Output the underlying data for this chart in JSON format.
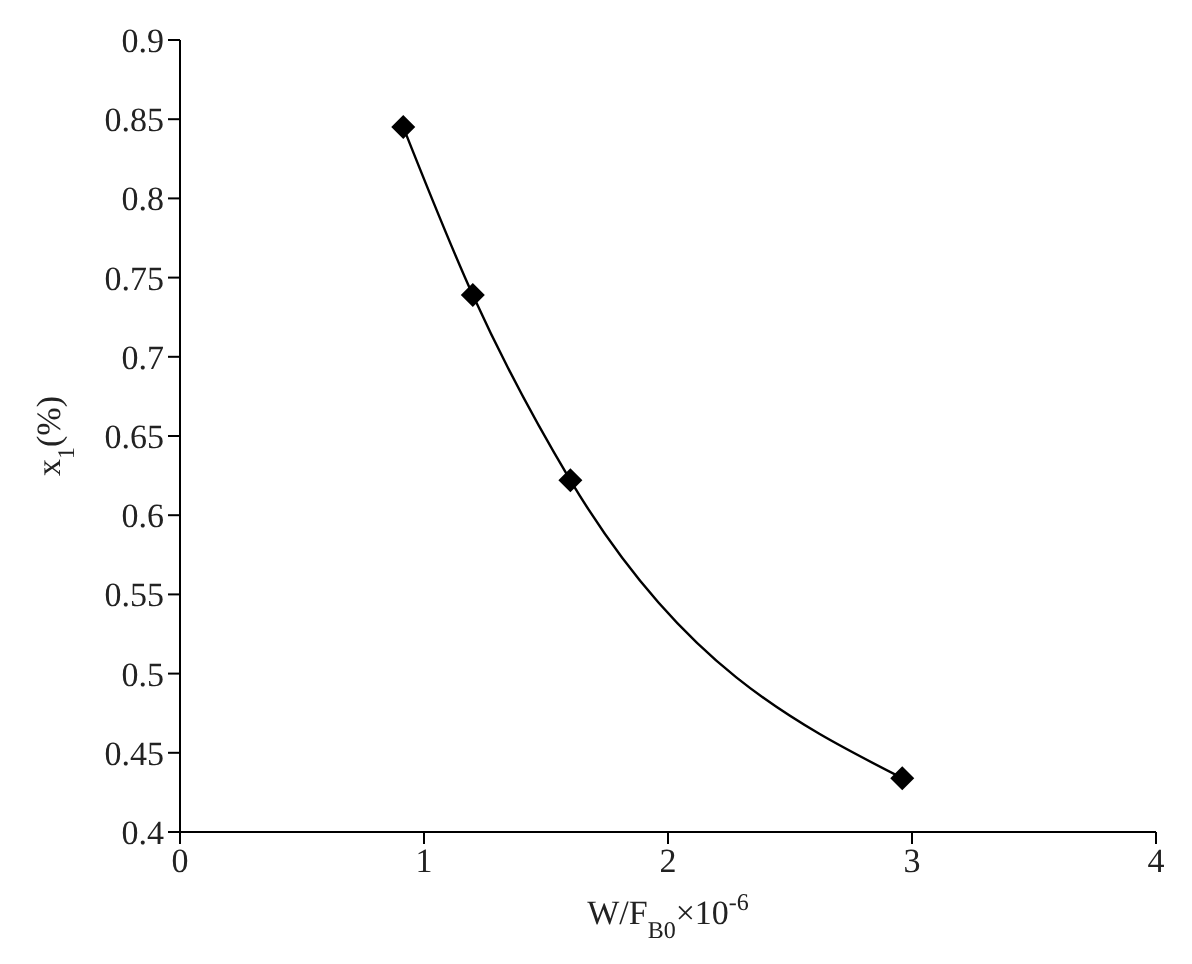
{
  "chart_data": {
    "type": "line",
    "xlabel": "W/F$_{B0}$×10$^{-6}$",
    "ylabel": "x$_{1}$(%)",
    "x": [
      0.915,
      1.2,
      1.6,
      2.96
    ],
    "series": [
      {
        "color": "#000000",
        "values": [
          0.845,
          0.739,
          0.622,
          0.434
        ]
      }
    ],
    "xlim": [
      0,
      4
    ],
    "xticks": [
      0,
      1,
      2,
      3,
      4
    ],
    "ylim": [
      0.4,
      0.9
    ],
    "yticks": [
      0.4,
      0.45,
      0.5,
      0.55,
      0.6,
      0.65,
      0.7,
      0.75,
      0.8,
      0.85,
      0.9
    ],
    "grid": false,
    "legend": false,
    "marker": "diamond",
    "line_style": "solid"
  }
}
